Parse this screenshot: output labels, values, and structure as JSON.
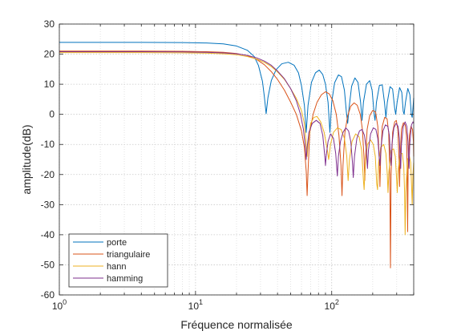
{
  "chart_data": {
    "type": "line",
    "title": "",
    "xlabel": "Fréquence normalisée",
    "ylabel": "amplitude(dB)",
    "xscale": "log",
    "xlim": [
      1,
      400
    ],
    "ylim": [
      -60,
      30
    ],
    "grid": true,
    "legend_location": "bottom-left",
    "x_ticks": [
      {
        "value": 1,
        "base": "10",
        "exp": "0"
      },
      {
        "value": 10,
        "base": "10",
        "exp": "1"
      },
      {
        "value": 100,
        "base": "10",
        "exp": "2"
      }
    ],
    "y_ticks": [
      "30",
      "20",
      "10",
      "0",
      "-10",
      "-20",
      "-30",
      "-40",
      "-50",
      "-60"
    ],
    "series": [
      {
        "name": "porte",
        "color": "#0072BD",
        "points": [
          [
            1,
            23.9
          ],
          [
            2,
            23.9
          ],
          [
            4,
            23.9
          ],
          [
            8,
            23.85
          ],
          [
            12,
            23.7
          ],
          [
            16,
            23.4
          ],
          [
            20,
            22.7
          ],
          [
            24,
            21.3
          ],
          [
            27,
            19.2
          ],
          [
            29,
            16.2
          ],
          [
            31,
            11
          ],
          [
            32,
            6
          ],
          [
            33,
            0.2
          ],
          [
            34,
            5.5
          ],
          [
            36,
            11.2
          ],
          [
            39,
            14.8
          ],
          [
            43,
            16.8
          ],
          [
            48,
            17.3
          ],
          [
            53,
            16.3
          ],
          [
            57,
            13.8
          ],
          [
            60,
            9.5
          ],
          [
            63,
            3
          ],
          [
            65,
            -6
          ],
          [
            67,
            3
          ],
          [
            71,
            10.6
          ],
          [
            76,
            13.8
          ],
          [
            81,
            14.7
          ],
          [
            86,
            13.2
          ],
          [
            90,
            10
          ],
          [
            94,
            4
          ],
          [
            97,
            -6
          ],
          [
            100,
            4
          ],
          [
            105,
            10.5
          ],
          [
            112,
            13.1
          ],
          [
            118,
            12.5
          ],
          [
            124,
            8
          ],
          [
            128,
            1
          ],
          [
            131,
            -3
          ],
          [
            134,
            2
          ],
          [
            140,
            9.3
          ],
          [
            148,
            12.1
          ],
          [
            156,
            10.6
          ],
          [
            163,
            4
          ],
          [
            167,
            -2
          ],
          [
            171,
            4
          ],
          [
            180,
            10
          ],
          [
            190,
            11.2
          ],
          [
            198,
            8
          ],
          [
            205,
            0
          ],
          [
            208,
            -2
          ],
          [
            213,
            4
          ],
          [
            224,
            9.6
          ],
          [
            235,
            9.8
          ],
          [
            244,
            4
          ],
          [
            250,
            -1
          ],
          [
            256,
            4
          ],
          [
            268,
            9.2
          ],
          [
            280,
            8.4
          ],
          [
            290,
            2
          ],
          [
            295,
            0
          ],
          [
            302,
            4
          ],
          [
            315,
            8.9
          ],
          [
            327,
            7.3
          ],
          [
            335,
            1
          ],
          [
            340,
            0
          ],
          [
            348,
            4
          ],
          [
            362,
            8.6
          ],
          [
            375,
            6.5
          ],
          [
            384,
            0
          ],
          [
            390,
            -1
          ],
          [
            398,
            4
          ],
          [
            400,
            5.5
          ]
        ]
      },
      {
        "name": "triangulaire",
        "color": "#D95319",
        "points": [
          [
            1,
            21
          ],
          [
            4,
            21
          ],
          [
            8,
            20.95
          ],
          [
            12,
            20.8
          ],
          [
            16,
            20.6
          ],
          [
            20,
            20.2
          ],
          [
            24,
            19.5
          ],
          [
            28,
            18.3
          ],
          [
            32,
            16.5
          ],
          [
            36,
            14.2
          ],
          [
            40,
            11.6
          ],
          [
            45,
            8
          ],
          [
            50,
            4
          ],
          [
            55,
            0
          ],
          [
            60,
            -5.5
          ],
          [
            63,
            -11
          ],
          [
            65,
            -19
          ],
          [
            66,
            -27
          ],
          [
            67,
            -19
          ],
          [
            69,
            -6
          ],
          [
            73,
            0
          ],
          [
            78,
            4
          ],
          [
            84,
            6.5
          ],
          [
            90,
            7.5
          ],
          [
            96,
            6.8
          ],
          [
            102,
            4.5
          ],
          [
            108,
            0
          ],
          [
            113,
            -7
          ],
          [
            117,
            -17
          ],
          [
            119,
            -27
          ],
          [
            121,
            -17
          ],
          [
            125,
            -6
          ],
          [
            131,
            -0.5
          ],
          [
            138,
            2.7
          ],
          [
            146,
            3.8
          ],
          [
            154,
            3
          ],
          [
            162,
            0
          ],
          [
            168,
            -5
          ],
          [
            173,
            -15
          ],
          [
            175,
            -22
          ],
          [
            177,
            -15
          ],
          [
            182,
            -5
          ],
          [
            190,
            -0.5
          ],
          [
            200,
            1.3
          ],
          [
            210,
            0.8
          ],
          [
            218,
            -4
          ],
          [
            223,
            -14
          ],
          [
            226,
            -24
          ],
          [
            229,
            -14
          ],
          [
            235,
            -4
          ],
          [
            245,
            -1
          ],
          [
            255,
            -1.5
          ],
          [
            262,
            -6
          ],
          [
            267,
            -20
          ],
          [
            270,
            -51
          ],
          [
            273,
            -20
          ],
          [
            280,
            -6
          ],
          [
            290,
            -2.5
          ],
          [
            298,
            -2
          ],
          [
            306,
            -5
          ],
          [
            312,
            -15
          ],
          [
            315,
            -24
          ],
          [
            318,
            -15
          ],
          [
            325,
            -5
          ],
          [
            336,
            -2.8
          ],
          [
            346,
            -3.5
          ],
          [
            354,
            -7
          ],
          [
            358,
            -18
          ],
          [
            361,
            -39
          ],
          [
            364,
            -18
          ],
          [
            372,
            -7
          ],
          [
            382,
            -4
          ],
          [
            392,
            -5
          ],
          [
            398,
            -9
          ],
          [
            400,
            -14
          ]
        ]
      },
      {
        "name": "hann",
        "color": "#EDB120",
        "points": [
          [
            1,
            20.5
          ],
          [
            4,
            20.5
          ],
          [
            8,
            20.45
          ],
          [
            12,
            20.35
          ],
          [
            16,
            20.1
          ],
          [
            20,
            19.8
          ],
          [
            24,
            19.2
          ],
          [
            28,
            18.4
          ],
          [
            32,
            17.3
          ],
          [
            36,
            15.9
          ],
          [
            40,
            14.1
          ],
          [
            45,
            11.6
          ],
          [
            50,
            8.5
          ],
          [
            55,
            5.3
          ],
          [
            60,
            1.2
          ],
          [
            63,
            -3
          ],
          [
            65,
            -10
          ],
          [
            66,
            -14
          ],
          [
            67,
            -10
          ],
          [
            70,
            -3
          ],
          [
            74,
            -1
          ],
          [
            78,
            -0.7
          ],
          [
            83,
            -2.5
          ],
          [
            88,
            -6
          ],
          [
            93,
            -12
          ],
          [
            95,
            -15
          ],
          [
            98,
            -10
          ],
          [
            103,
            -6
          ],
          [
            110,
            -4.5
          ],
          [
            117,
            -5
          ],
          [
            124,
            -8
          ],
          [
            129,
            -14
          ],
          [
            132,
            -22
          ],
          [
            135,
            -15
          ],
          [
            141,
            -9
          ],
          [
            150,
            -6.5
          ],
          [
            159,
            -7.5
          ],
          [
            166,
            -12
          ],
          [
            171,
            -22
          ],
          [
            173,
            -25
          ],
          [
            176,
            -17
          ],
          [
            183,
            -10
          ],
          [
            193,
            -8.5
          ],
          [
            202,
            -10
          ],
          [
            209,
            -14
          ],
          [
            214,
            -23
          ],
          [
            217,
            -25
          ],
          [
            221,
            -16
          ],
          [
            229,
            -11
          ],
          [
            241,
            -10
          ],
          [
            250,
            -13
          ],
          [
            256,
            -20
          ],
          [
            259,
            -26
          ],
          [
            263,
            -19
          ],
          [
            273,
            -12
          ],
          [
            285,
            -11.5
          ],
          [
            293,
            -14
          ],
          [
            300,
            -22
          ],
          [
            303,
            -26
          ],
          [
            307,
            -19
          ],
          [
            318,
            -13
          ],
          [
            330,
            -13
          ],
          [
            338,
            -17
          ],
          [
            343,
            -26
          ],
          [
            346,
            -40
          ],
          [
            350,
            -26
          ],
          [
            360,
            -15
          ],
          [
            372,
            -14
          ],
          [
            380,
            -16
          ],
          [
            386,
            -24
          ],
          [
            390,
            -30
          ],
          [
            395,
            -20
          ],
          [
            400,
            -16
          ]
        ]
      },
      {
        "name": "hamming",
        "color": "#7E2F8E",
        "points": [
          [
            1,
            20.8
          ],
          [
            4,
            20.8
          ],
          [
            8,
            20.75
          ],
          [
            12,
            20.6
          ],
          [
            16,
            20.4
          ],
          [
            20,
            20.1
          ],
          [
            24,
            19.6
          ],
          [
            28,
            18.8
          ],
          [
            32,
            17.7
          ],
          [
            36,
            16.3
          ],
          [
            40,
            14.4
          ],
          [
            45,
            11.8
          ],
          [
            50,
            8.5
          ],
          [
            55,
            4.5
          ],
          [
            59,
            0
          ],
          [
            62,
            -5
          ],
          [
            64,
            -11
          ],
          [
            65,
            -15
          ],
          [
            66,
            -11
          ],
          [
            68,
            -6
          ],
          [
            72,
            -3
          ],
          [
            77,
            -2
          ],
          [
            82,
            -3
          ],
          [
            86,
            -7
          ],
          [
            89,
            -14
          ],
          [
            90,
            -17
          ],
          [
            91,
            -14
          ],
          [
            94,
            -9
          ],
          [
            98,
            -6.5
          ],
          [
            103,
            -8
          ],
          [
            107,
            -13
          ],
          [
            110,
            -20.5
          ],
          [
            112,
            -14
          ],
          [
            116,
            -9
          ],
          [
            121,
            -6
          ],
          [
            127,
            -4.5
          ],
          [
            133,
            -5.5
          ],
          [
            138,
            -9
          ],
          [
            142,
            -16
          ],
          [
            144,
            -21
          ],
          [
            147,
            -14
          ],
          [
            153,
            -8
          ],
          [
            160,
            -5.5
          ],
          [
            167,
            -5
          ],
          [
            174,
            -7
          ],
          [
            180,
            -12
          ],
          [
            183,
            -18
          ],
          [
            186,
            -12
          ],
          [
            193,
            -6.5
          ],
          [
            202,
            -4.5
          ],
          [
            211,
            -5
          ],
          [
            218,
            -8
          ],
          [
            223,
            -14
          ],
          [
            226,
            -17
          ],
          [
            230,
            -11
          ],
          [
            238,
            -5.5
          ],
          [
            248,
            -3.5
          ],
          [
            258,
            -4
          ],
          [
            265,
            -7
          ],
          [
            270,
            -14
          ],
          [
            273,
            -17
          ],
          [
            277,
            -10
          ],
          [
            286,
            -4.5
          ],
          [
            297,
            -3
          ],
          [
            307,
            -4
          ],
          [
            314,
            -8
          ],
          [
            318,
            -15
          ],
          [
            321,
            -18
          ],
          [
            325,
            -10
          ],
          [
            335,
            -4
          ],
          [
            346,
            -2.5
          ],
          [
            356,
            -4
          ],
          [
            363,
            -9
          ],
          [
            367,
            -16
          ],
          [
            370,
            -18
          ],
          [
            374,
            -10
          ],
          [
            385,
            -3.5
          ],
          [
            395,
            -2.5
          ],
          [
            400,
            -3
          ]
        ]
      }
    ]
  }
}
